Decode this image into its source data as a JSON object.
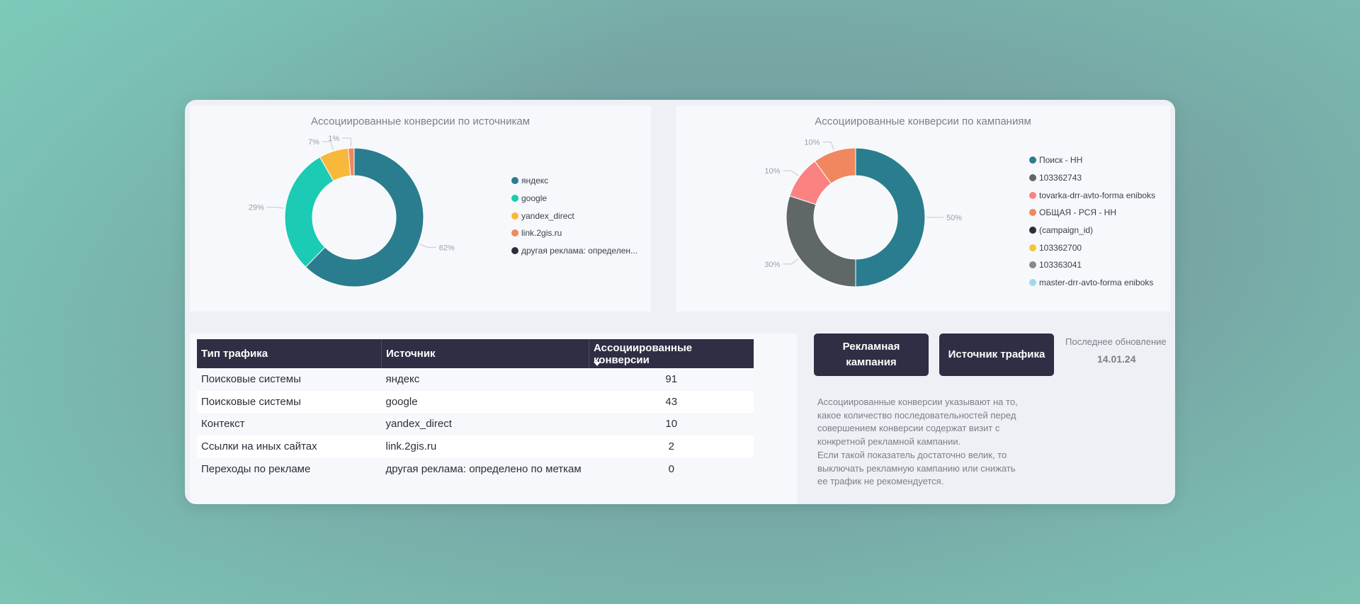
{
  "chart_data": [
    {
      "type": "pie",
      "title": "Ассоциированные конверсии по источникам",
      "categories": [
        "яндекс",
        "google",
        "yandex_direct",
        "link.2gis.ru",
        "другая реклама: определено по меткам"
      ],
      "legend_labels": [
        "яндекс",
        "google",
        "yandex_direct",
        "link.2gis.ru",
        "другая реклама: определен..."
      ],
      "values": [
        91,
        43,
        10,
        2,
        0
      ],
      "data_labels": [
        "62%",
        "29%",
        "7%",
        "1%",
        ""
      ],
      "colors": [
        "#2a7d8e",
        "#1bcbb4",
        "#f7b83c",
        "#f0875e",
        "#2b2f3d"
      ],
      "legend_position": "right"
    },
    {
      "type": "pie",
      "title": "Ассоциированные конверсии по кампаниям",
      "categories": [
        "Поиск - НН",
        "103362743",
        "tovarka-drr-avto-forma eniboks",
        "ОБЩАЯ - РСЯ - НН",
        "(campaign_id)",
        "103362700",
        "103363041",
        "master-drr-avto-forma eniboks"
      ],
      "values": [
        50,
        30,
        10,
        10,
        0,
        0,
        0,
        0
      ],
      "data_labels": [
        "50%",
        "30%",
        "10%",
        "10%",
        "",
        "",
        "",
        ""
      ],
      "colors": [
        "#2a7d8e",
        "#5f6767",
        "#fb8282",
        "#f0875e",
        "#2b2f3d",
        "#f8c23c",
        "#8a8a8a",
        "#9fd9ef"
      ],
      "legend_position": "right"
    },
    {
      "type": "table",
      "columns": [
        "Тип трафика",
        "Источник",
        "Ассоциированные конверсии"
      ],
      "rows": [
        [
          "Поисковые системы",
          "яндекс",
          "91"
        ],
        [
          "Поисковые системы",
          "google",
          "43"
        ],
        [
          "Контекст",
          "yandex_direct",
          "10"
        ],
        [
          "Ссылки на иных сайтах",
          "link.2gis.ru",
          "2"
        ],
        [
          "Переходы по рекламе",
          "другая реклама: определено по меткам",
          "0"
        ]
      ]
    }
  ],
  "buttons": {
    "campaign_line1": "Рекламная",
    "campaign_line2": "кампания",
    "traffic_source": "Источник трафика"
  },
  "last_update": {
    "label": "Последнее обновление",
    "date": "14.01.24"
  },
  "note_lines": [
    "Ассоциированные конверсии указывают на то,",
    "какое количество последовательностей перед",
    "совершением конверсии содержат визит с",
    "конкретной рекламной кампании.",
    "Если такой показатель достаточно велик, то",
    "выключать рекламную кампанию или снижать",
    "ее трафик не рекомендуется."
  ],
  "icons": {
    "sort": "sort-desc-icon",
    "legend": "legend-dot-icon"
  }
}
